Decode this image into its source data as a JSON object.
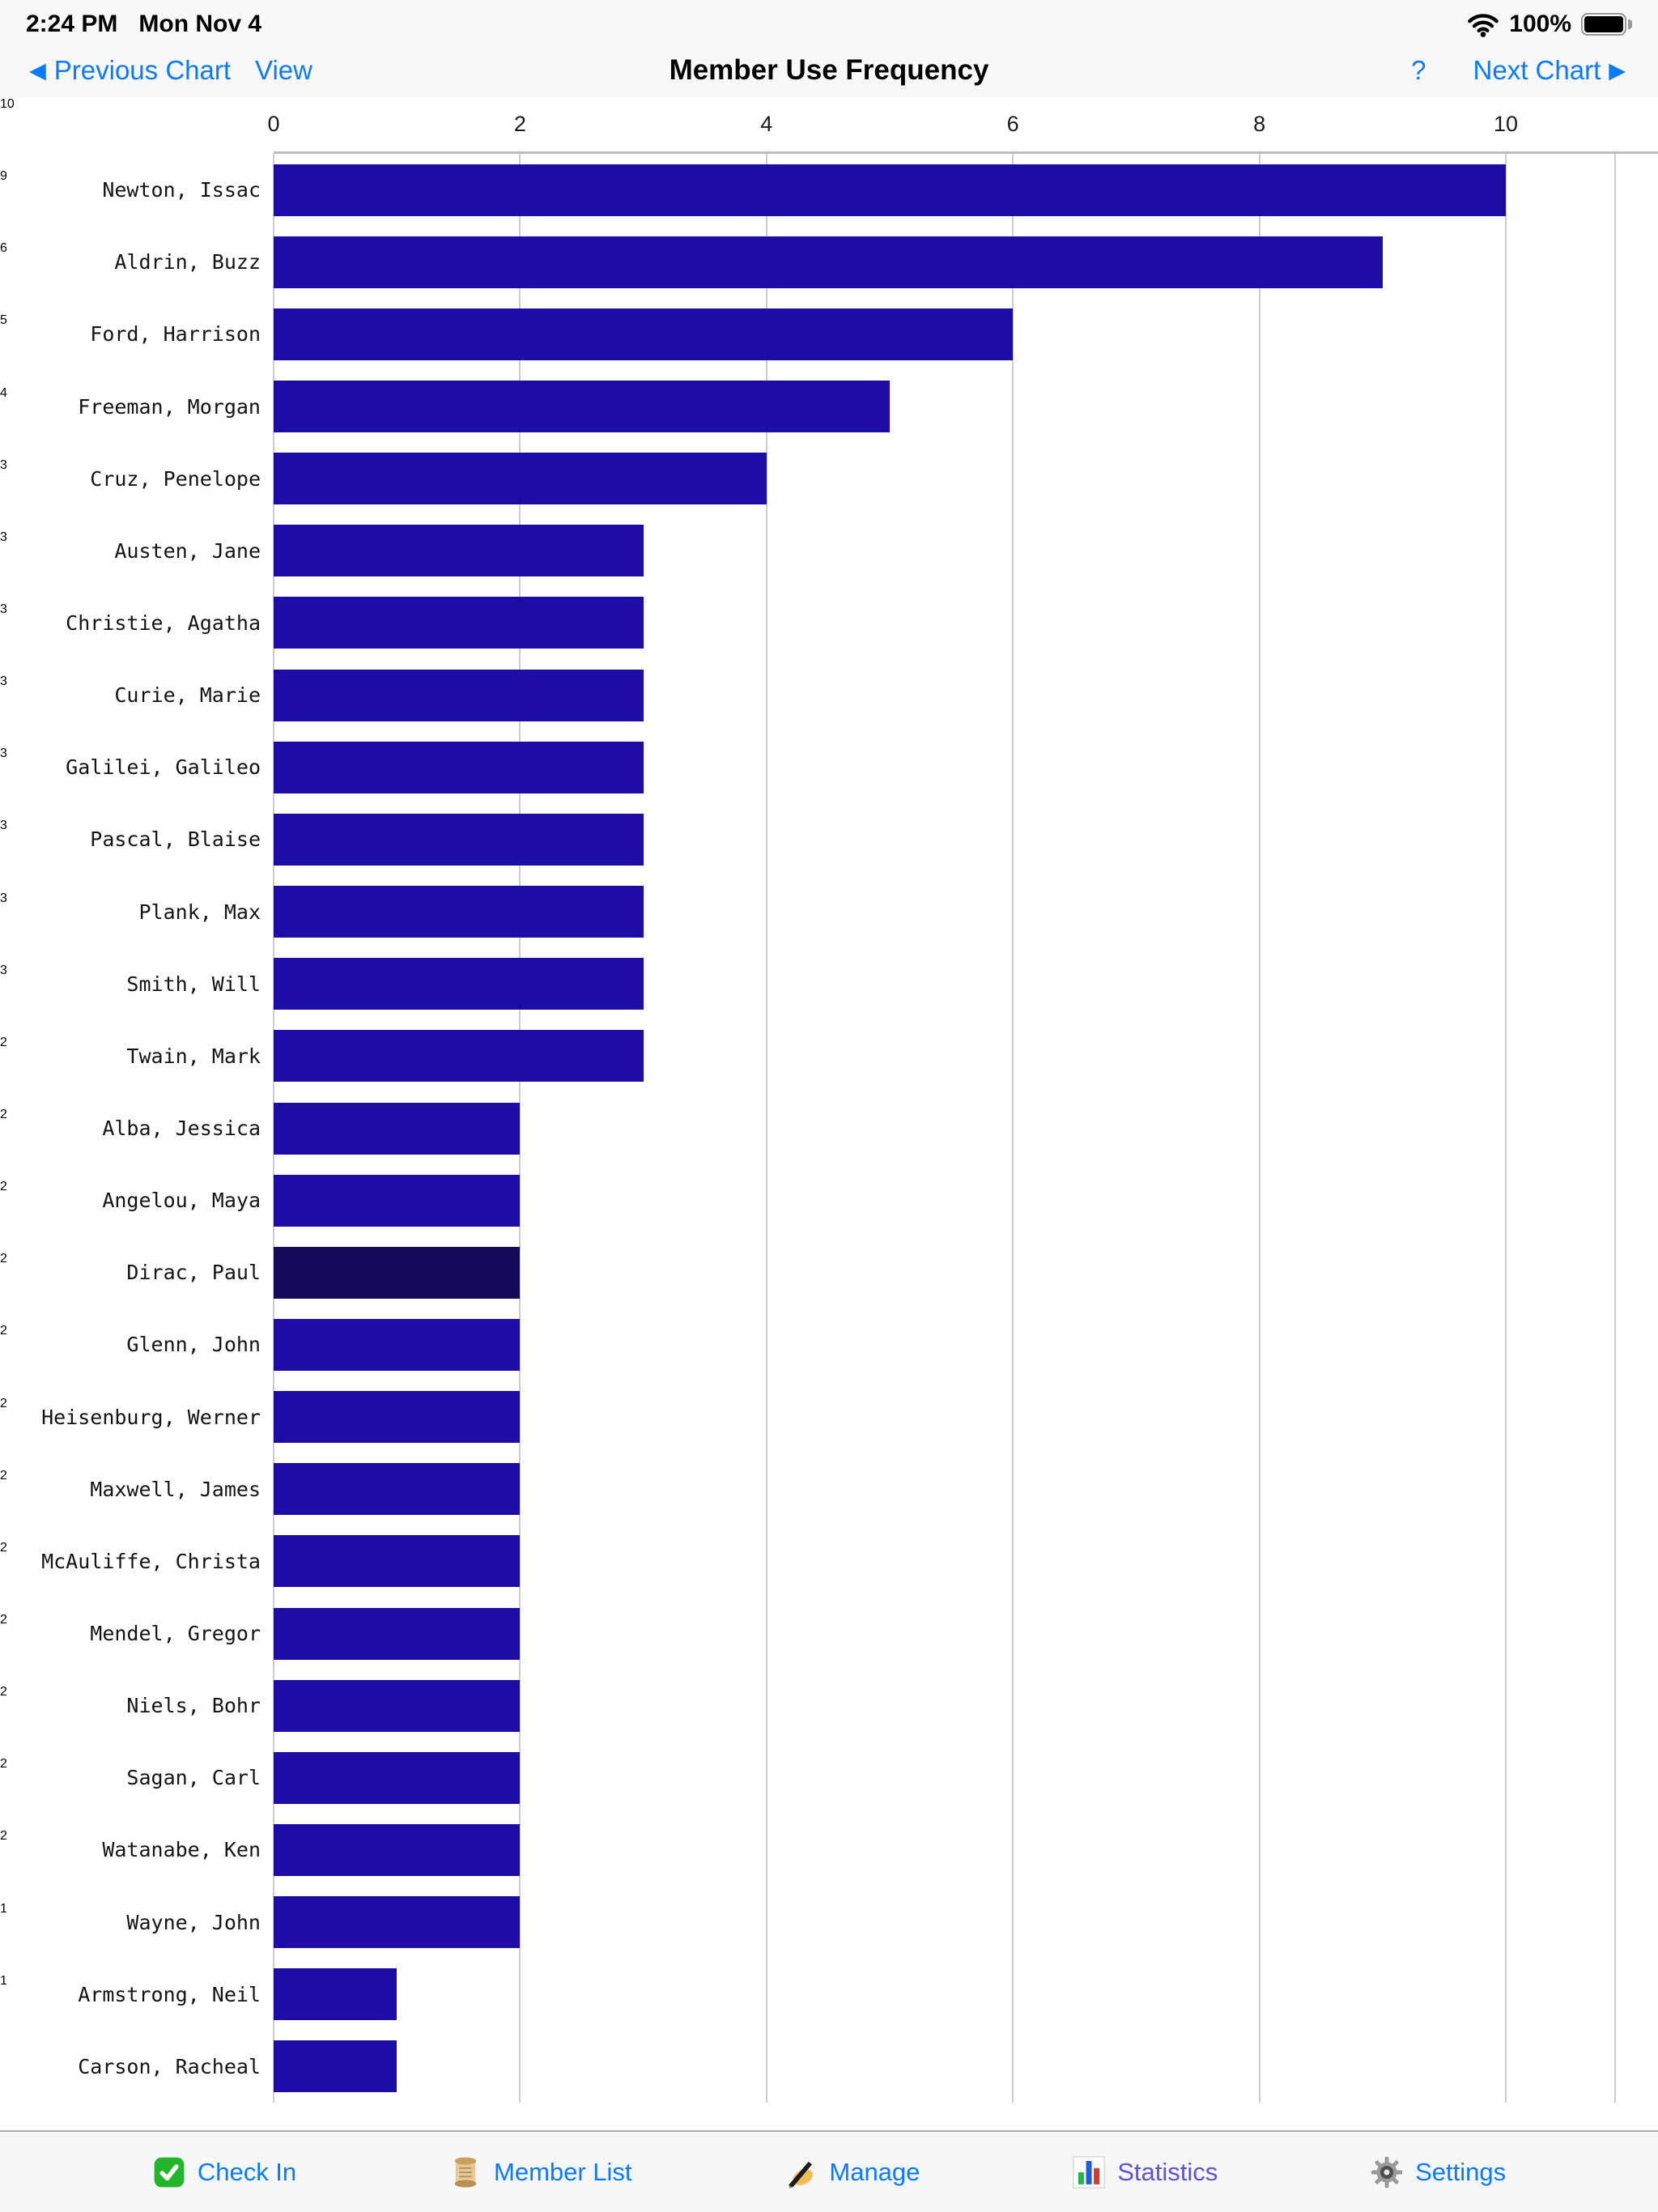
{
  "status_bar": {
    "time": "2:24 PM",
    "date": "Mon Nov 4",
    "battery_percent": "100%",
    "wifi_icon": "wifi-icon",
    "battery_icon": "battery-icon"
  },
  "nav": {
    "previous_label": "Previous Chart",
    "previous_arrow": "◀",
    "view_label": "View",
    "title": "Member Use Frequency",
    "help_label": "?",
    "next_label": "Next Chart",
    "next_arrow": "▶"
  },
  "chart_data": {
    "type": "bar",
    "orientation": "horizontal",
    "title": "Member Use Frequency",
    "categories": [
      "Newton, Issac",
      "Aldrin, Buzz",
      "Ford, Harrison",
      "Freeman, Morgan",
      "Cruz, Penelope",
      "Austen, Jane",
      "Christie, Agatha",
      "Curie, Marie",
      "Galilei, Galileo",
      "Pascal, Blaise",
      "Plank, Max",
      "Smith, Will",
      "Twain, Mark",
      "Alba, Jessica",
      "Angelou, Maya",
      "Dirac, Paul",
      "Glenn, John",
      "Heisenburg, Werner",
      "Maxwell, James",
      "McAuliffe, Christa",
      "Mendel, Gregor",
      "Niels, Bohr",
      "Sagan, Carl",
      "Watanabe, Ken",
      "Wayne, John",
      "Armstrong, Neil",
      "Carson, Racheal"
    ],
    "values": [
      10,
      9,
      6,
      5,
      4,
      3,
      3,
      3,
      3,
      3,
      3,
      3,
      3,
      2,
      2,
      2,
      2,
      2,
      2,
      2,
      2,
      2,
      2,
      2,
      2,
      1,
      1
    ],
    "x_ticks": [
      0,
      2,
      4,
      6,
      8,
      10
    ],
    "xlim": [
      0,
      10.9
    ],
    "grid": true,
    "value_labels_shown": true,
    "bar_color": "#1e0ca6",
    "highlighted_category": "Dirac, Paul",
    "highlighted_index": 15,
    "highlight_color": "#140a5a",
    "gridline_color": "#cccccc"
  },
  "toolbar": {
    "items": [
      {
        "label": "Check In",
        "icon": "check-in-icon"
      },
      {
        "label": "Member List",
        "icon": "member-list-icon"
      },
      {
        "label": "Manage",
        "icon": "manage-icon"
      },
      {
        "label": "Statistics",
        "icon": "statistics-icon",
        "active": true
      },
      {
        "label": "Settings",
        "icon": "settings-icon"
      }
    ],
    "link_color": "#0a7aff",
    "active_color": "#5a55d6"
  }
}
